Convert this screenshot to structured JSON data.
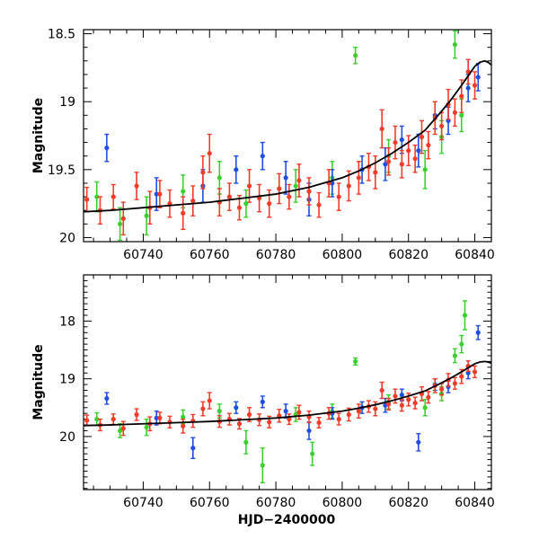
{
  "figure": {
    "xlabel": "HJD−2400000",
    "colors": {
      "red": "#f03c28",
      "green": "#3ad12e",
      "blue": "#1f4fe0",
      "model": "#000000",
      "axes": "#000000"
    }
  },
  "chart_data": [
    {
      "type": "scatter",
      "panel": "top",
      "title": "",
      "xlabel": "",
      "ylabel": "Magnitude",
      "xlim": [
        60722,
        60845
      ],
      "ylim": [
        18.47,
        20.03
      ],
      "y_inverted": true,
      "x_ticks": [
        60740,
        60760,
        60780,
        60800,
        60820,
        60840
      ],
      "y_ticks": [
        18.5,
        19,
        19.5,
        20
      ],
      "y_tick_labels": [
        "18.5",
        "19",
        "19.5",
        "20"
      ],
      "model": {
        "x": [
          60722,
          60730,
          60740,
          60750,
          60760,
          60770,
          60780,
          60790,
          60800,
          60805,
          60810,
          60815,
          60820,
          60825,
          60830,
          60833,
          60836,
          60838,
          60840,
          60841.5,
          60843,
          60844,
          60845
        ],
        "y": [
          19.81,
          19.8,
          19.78,
          19.76,
          19.74,
          19.71,
          19.68,
          19.63,
          19.56,
          19.51,
          19.45,
          19.38,
          19.3,
          19.21,
          19.07,
          18.98,
          18.88,
          18.81,
          18.74,
          18.71,
          18.7,
          18.71,
          18.73
        ]
      },
      "series": [
        {
          "color": "red",
          "x": [
            60723,
            60727,
            60731,
            60734,
            60738,
            60742,
            60745,
            60748,
            60752,
            60755,
            60758,
            60760,
            60763,
            60766,
            60769,
            60772,
            60775,
            60778,
            60781,
            60784,
            60787,
            60790,
            60793,
            60796,
            60799,
            60802,
            60805,
            60808,
            60810,
            60812,
            60814,
            60816,
            60818,
            60820,
            60822,
            60824,
            60826,
            60828,
            60830,
            60832,
            60834,
            60836,
            60838,
            60840
          ],
          "y": [
            19.72,
            19.8,
            19.7,
            19.86,
            19.62,
            19.78,
            19.68,
            19.75,
            19.82,
            19.73,
            19.52,
            19.38,
            19.74,
            19.7,
            19.78,
            19.62,
            19.71,
            19.75,
            19.64,
            19.7,
            19.58,
            19.66,
            19.76,
            19.6,
            19.7,
            19.62,
            19.56,
            19.48,
            19.52,
            19.2,
            19.44,
            19.3,
            19.46,
            19.36,
            19.42,
            19.26,
            19.32,
            19.12,
            19.18,
            19.02,
            19.08,
            18.96,
            18.78,
            18.88
          ],
          "err": [
            0.09,
            0.1,
            0.09,
            0.12,
            0.1,
            0.12,
            0.1,
            0.1,
            0.12,
            0.11,
            0.12,
            0.14,
            0.1,
            0.1,
            0.09,
            0.12,
            0.1,
            0.1,
            0.11,
            0.09,
            0.12,
            0.1,
            0.09,
            0.1,
            0.1,
            0.11,
            0.12,
            0.1,
            0.12,
            0.14,
            0.1,
            0.12,
            0.1,
            0.11,
            0.1,
            0.12,
            0.1,
            0.12,
            0.1,
            0.11,
            0.1,
            0.12,
            0.09,
            0.1
          ]
        },
        {
          "color": "green",
          "x": [
            60726,
            60733,
            60741,
            60752,
            60763,
            60771,
            60786,
            60797,
            60804,
            60814,
            60825,
            60830,
            60834,
            60836
          ],
          "y": [
            19.7,
            19.9,
            19.84,
            19.66,
            19.56,
            19.75,
            19.62,
            19.56,
            18.66,
            19.4,
            19.5,
            19.26,
            18.58,
            19.1
          ],
          "err": [
            0.11,
            0.12,
            0.14,
            0.12,
            0.12,
            0.1,
            0.12,
            0.12,
            0.06,
            0.12,
            0.14,
            0.12,
            0.1,
            0.12
          ]
        },
        {
          "color": "blue",
          "x": [
            60729,
            60744,
            60758,
            60768,
            60776,
            60783,
            60790,
            60797,
            60806,
            60813,
            60818,
            60823,
            60828,
            60832,
            60838,
            60841
          ],
          "y": [
            19.34,
            19.68,
            19.62,
            19.5,
            19.4,
            19.56,
            19.72,
            19.6,
            19.5,
            19.46,
            19.28,
            19.36,
            19.1,
            19.14,
            18.9,
            18.82
          ],
          "err": [
            0.1,
            0.12,
            0.12,
            0.1,
            0.1,
            0.12,
            0.12,
            0.1,
            0.1,
            0.12,
            0.1,
            0.12,
            0.1,
            0.1,
            0.1,
            0.1
          ]
        }
      ]
    },
    {
      "type": "scatter",
      "panel": "bottom",
      "title": "",
      "xlabel": "HJD−2400000",
      "ylabel": "Magnitude",
      "xlim": [
        60722,
        60845
      ],
      "ylim": [
        17.2,
        20.92
      ],
      "y_inverted": true,
      "x_ticks": [
        60740,
        60760,
        60780,
        60800,
        60820,
        60840
      ],
      "y_ticks": [
        18,
        19,
        20
      ],
      "y_tick_labels": [
        "18",
        "19",
        "20"
      ],
      "model": {
        "x": [
          60722,
          60730,
          60740,
          60750,
          60760,
          60770,
          60780,
          60790,
          60800,
          60805,
          60810,
          60815,
          60820,
          60825,
          60830,
          60833,
          60836,
          60838,
          60840,
          60841.5,
          60843,
          60844,
          60845
        ],
        "y": [
          19.81,
          19.8,
          19.78,
          19.76,
          19.74,
          19.71,
          19.68,
          19.63,
          19.56,
          19.51,
          19.45,
          19.38,
          19.3,
          19.21,
          19.07,
          18.98,
          18.88,
          18.81,
          18.74,
          18.71,
          18.7,
          18.71,
          18.73
        ]
      },
      "series": [
        {
          "color": "red",
          "x": [
            60723,
            60727,
            60731,
            60734,
            60738,
            60742,
            60745,
            60748,
            60752,
            60755,
            60758,
            60760,
            60763,
            60766,
            60769,
            60772,
            60775,
            60778,
            60781,
            60784,
            60787,
            60790,
            60793,
            60796,
            60799,
            60802,
            60805,
            60808,
            60810,
            60812,
            60814,
            60816,
            60818,
            60820,
            60822,
            60824,
            60826,
            60828,
            60830,
            60832,
            60834,
            60836,
            60838,
            60840
          ],
          "y": [
            19.72,
            19.8,
            19.7,
            19.86,
            19.62,
            19.78,
            19.68,
            19.75,
            19.82,
            19.73,
            19.52,
            19.38,
            19.74,
            19.7,
            19.78,
            19.62,
            19.71,
            19.75,
            19.64,
            19.7,
            19.58,
            19.66,
            19.76,
            19.6,
            19.7,
            19.62,
            19.56,
            19.48,
            19.52,
            19.2,
            19.44,
            19.3,
            19.46,
            19.36,
            19.42,
            19.26,
            19.32,
            19.12,
            19.18,
            19.02,
            19.08,
            18.96,
            18.78,
            18.88
          ],
          "err": [
            0.09,
            0.1,
            0.09,
            0.12,
            0.1,
            0.12,
            0.1,
            0.1,
            0.12,
            0.11,
            0.12,
            0.14,
            0.1,
            0.1,
            0.09,
            0.12,
            0.1,
            0.1,
            0.11,
            0.09,
            0.12,
            0.1,
            0.09,
            0.1,
            0.1,
            0.11,
            0.12,
            0.1,
            0.12,
            0.14,
            0.1,
            0.12,
            0.1,
            0.11,
            0.1,
            0.12,
            0.1,
            0.12,
            0.1,
            0.11,
            0.1,
            0.12,
            0.09,
            0.1
          ]
        },
        {
          "color": "green",
          "x": [
            60726,
            60733,
            60741,
            60752,
            60763,
            60771,
            60776,
            60786,
            60791,
            60797,
            60804,
            60814,
            60825,
            60830,
            60834,
            60836,
            60837
          ],
          "y": [
            19.7,
            19.9,
            19.84,
            19.66,
            19.56,
            20.1,
            20.5,
            19.62,
            20.3,
            19.56,
            18.7,
            19.4,
            19.5,
            19.26,
            18.6,
            18.4,
            17.9
          ],
          "err": [
            0.11,
            0.12,
            0.14,
            0.12,
            0.12,
            0.2,
            0.3,
            0.12,
            0.2,
            0.12,
            0.06,
            0.12,
            0.14,
            0.12,
            0.12,
            0.15,
            0.25
          ]
        },
        {
          "color": "blue",
          "x": [
            60729,
            60744,
            60755,
            60768,
            60776,
            60783,
            60790,
            60797,
            60806,
            60813,
            60818,
            60823,
            60828,
            60832,
            60838,
            60841
          ],
          "y": [
            19.34,
            19.68,
            20.2,
            19.5,
            19.4,
            19.56,
            19.9,
            19.6,
            19.5,
            19.46,
            19.28,
            20.1,
            19.1,
            19.14,
            18.9,
            18.2
          ],
          "err": [
            0.1,
            0.12,
            0.18,
            0.1,
            0.1,
            0.12,
            0.15,
            0.1,
            0.1,
            0.12,
            0.1,
            0.15,
            0.1,
            0.1,
            0.1,
            0.12
          ]
        }
      ]
    }
  ]
}
